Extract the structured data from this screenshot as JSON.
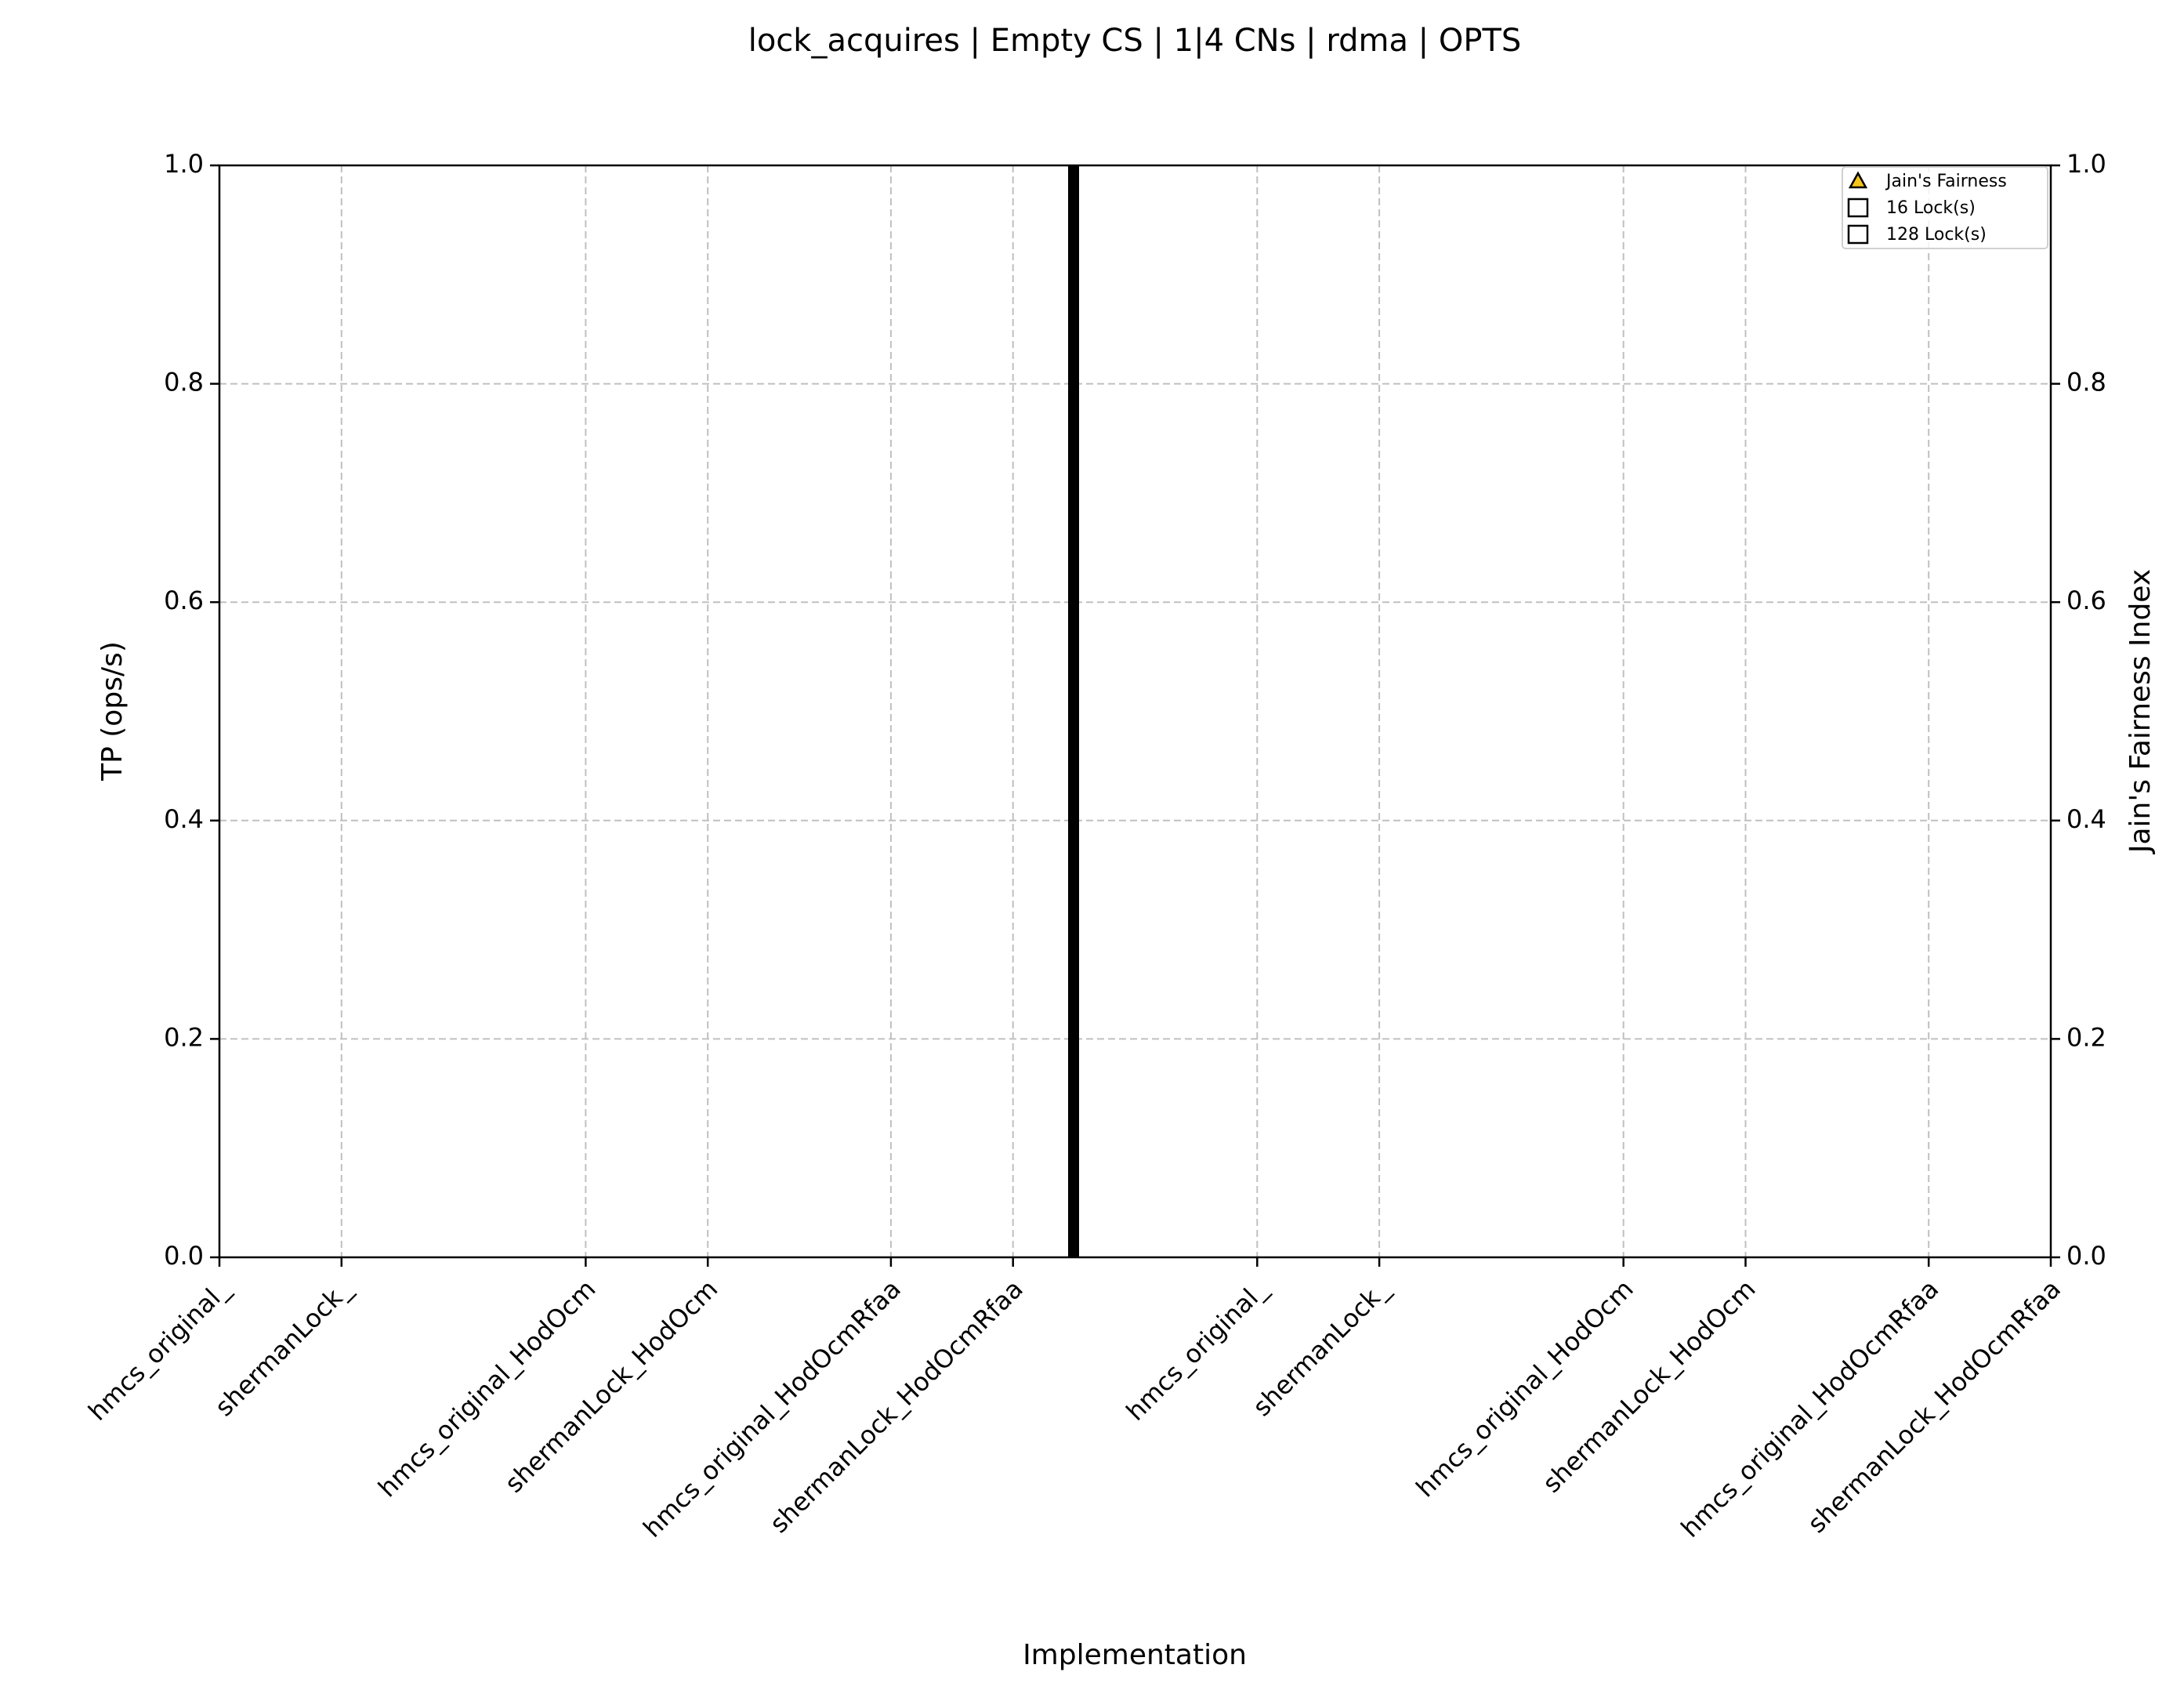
{
  "chart_data": {
    "type": "bar",
    "title": "lock_acquires | Empty CS | 1|4 CNs | rdma | OPTS",
    "x_label": "Implementation",
    "y_label": "TP (ops/s)",
    "y2_label": "Jain's Fairness Index",
    "xlim": [
      0,
      15
    ],
    "xticks": [
      {
        "value": 0,
        "label": "hmcs_original_"
      },
      {
        "value": 1,
        "label": "shermanLock_"
      },
      {
        "value": 3,
        "label": "hmcs_original_HodOcm"
      },
      {
        "value": 4,
        "label": "shermanLock_HodOcm"
      },
      {
        "value": 5.5,
        "label": "hmcs_original_HodOcmRfaa"
      },
      {
        "value": 6.5,
        "label": "shermanLock_HodOcmRfaa"
      },
      {
        "value": 8.5,
        "label": "hmcs_original_"
      },
      {
        "value": 9.5,
        "label": "shermanLock_"
      },
      {
        "value": 11.5,
        "label": "hmcs_original_HodOcm"
      },
      {
        "value": 12.5,
        "label": "shermanLock_HodOcm"
      },
      {
        "value": 14,
        "label": "hmcs_original_HodOcmRfaa"
      },
      {
        "value": 15,
        "label": "shermanLock_HodOcmRfaa"
      }
    ],
    "ylim": [
      0,
      1
    ],
    "yticks": [
      {
        "value": 0,
        "label": "0.0"
      },
      0.2,
      0.4,
      0.6,
      0.8,
      {
        "value": 1,
        "label": "1.0"
      }
    ],
    "y2lim": [
      0,
      1
    ],
    "y2ticks": [
      {
        "value": 0,
        "label": "0.0"
      },
      0.2,
      0.4,
      0.6,
      0.8,
      {
        "value": 1,
        "label": "1.0"
      }
    ],
    "grid": true,
    "legend": "upper right",
    "series": [
      {
        "name": "Jain's Fairness",
        "color": "#f5c518",
        "marker": "triangle",
        "axis": "y2",
        "values": [
          null,
          null,
          null,
          null,
          null,
          null,
          null,
          null,
          null,
          null,
          null,
          null
        ]
      },
      {
        "name": "16 Lock(s)",
        "color": "#ffffff",
        "marker": "square",
        "values": [
          null,
          null,
          null,
          null,
          null,
          null,
          null,
          null,
          null,
          null,
          null,
          null
        ]
      },
      {
        "name": "128 Lock(s)",
        "color": "#ffffff",
        "marker": "square",
        "values": [
          null,
          null,
          null,
          null,
          null,
          null,
          null,
          null,
          null,
          null,
          null,
          null
        ]
      }
    ]
  }
}
